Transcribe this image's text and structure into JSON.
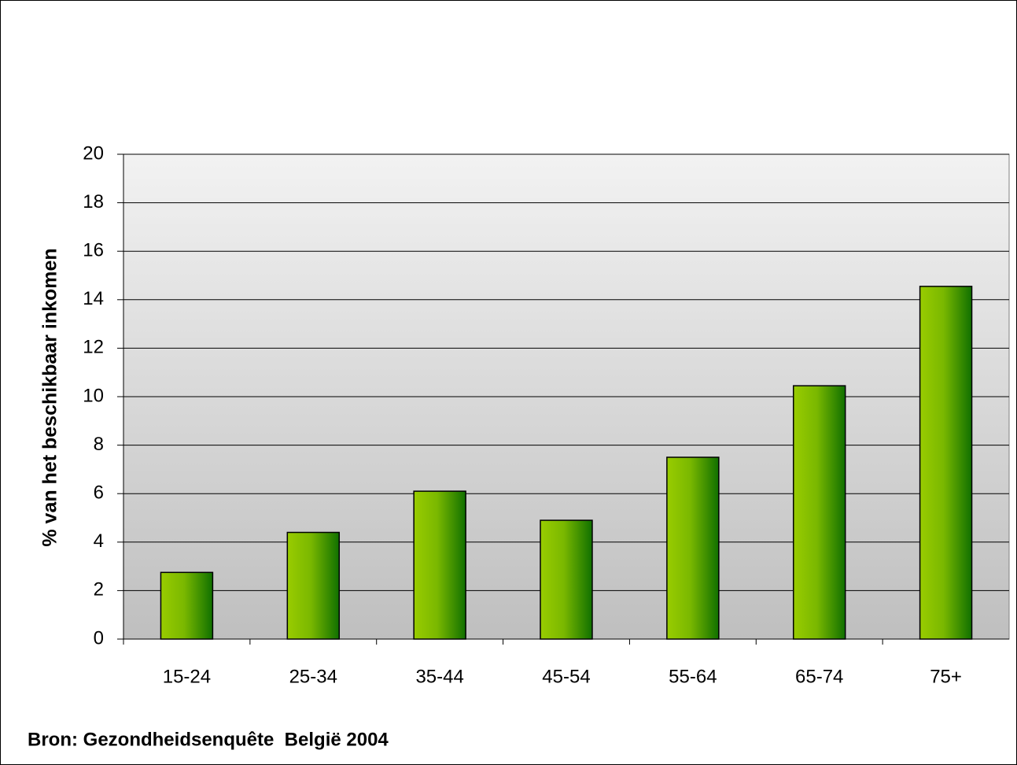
{
  "chart_data": {
    "type": "bar",
    "y_label": "% van het beschikbaar inkomen",
    "annotation": "Bron: Gezondheidsenquête  België 2004",
    "categories": [
      "15-24",
      "25-34",
      "35-44",
      "45-54",
      "55-64",
      "65-74",
      "75+"
    ],
    "values": [
      2.75,
      4.4,
      6.1,
      4.9,
      7.5,
      10.45,
      14.55
    ],
    "color": "#99cc00",
    "ylim": [
      0,
      20
    ],
    "yticks": [
      0,
      2,
      4,
      6,
      8,
      10,
      12,
      14,
      16,
      18,
      20
    ],
    "grid": true
  }
}
